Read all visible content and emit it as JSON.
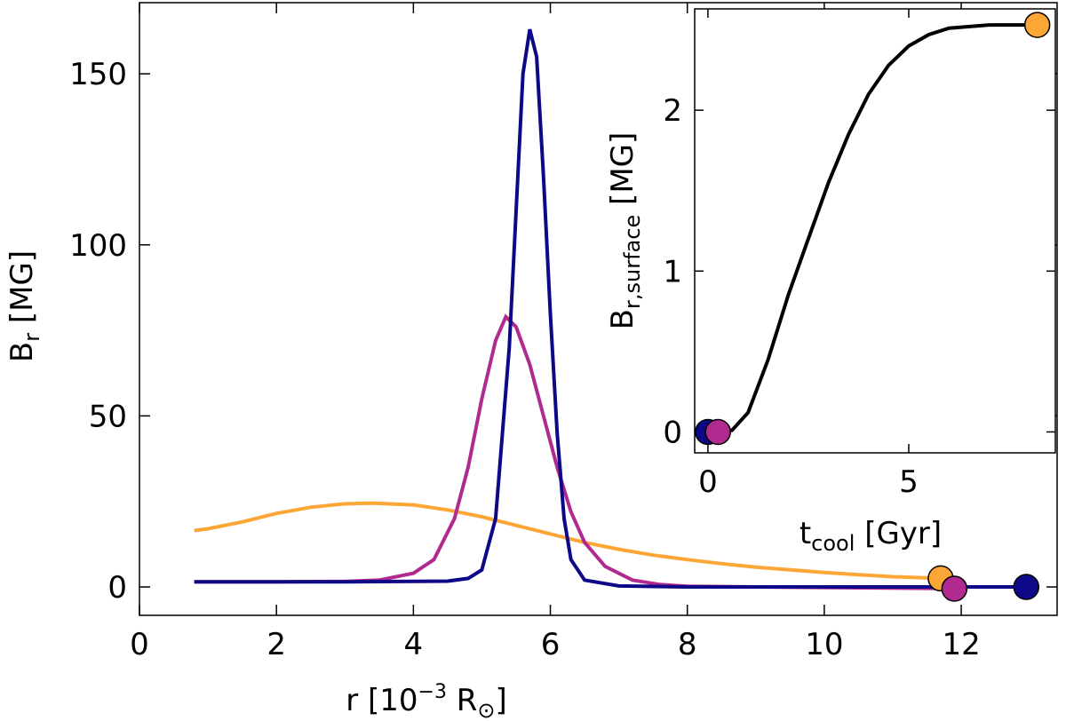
{
  "chart_data": [
    {
      "type": "line",
      "xlabel": [
        "r [10",
        "−3",
        " R",
        "⊙",
        "]"
      ],
      "ylabel": [
        "B",
        "r",
        " [MG]"
      ],
      "xlim": [
        0,
        13.4
      ],
      "ylim": [
        -8.3,
        170.8
      ],
      "xticks": [
        0,
        2,
        4,
        6,
        8,
        10,
        12
      ],
      "yticks": [
        0,
        50,
        100,
        150
      ],
      "end_markers": true,
      "series": [
        {
          "color": "#fca636",
          "x": [
            0.8,
            1,
            1.5,
            2,
            2.5,
            3,
            3.4,
            4,
            4.5,
            5,
            5.5,
            6,
            6.5,
            7,
            7.5,
            8,
            8.5,
            9,
            9.5,
            10,
            10.5,
            11,
            11.7
          ],
          "values": [
            16.5,
            17,
            19,
            21.5,
            23.3,
            24.3,
            24.5,
            24,
            22.5,
            20.5,
            18,
            15.5,
            13,
            11,
            9.3,
            8,
            6.8,
            5.8,
            5,
            4.2,
            3.6,
            3,
            2.5
          ]
        },
        {
          "color": "#b12a90",
          "x": [
            0.8,
            2,
            3,
            3.5,
            4,
            4.3,
            4.6,
            4.8,
            5,
            5.2,
            5.35,
            5.5,
            5.7,
            5.9,
            6.1,
            6.3,
            6.5,
            6.8,
            7.2,
            7.6,
            8,
            9,
            11.9
          ],
          "values": [
            1.5,
            1.5,
            1.6,
            2,
            4,
            8,
            20,
            35,
            55,
            72,
            79,
            76,
            65,
            50,
            35,
            22,
            13,
            6,
            2,
            0.7,
            0.2,
            0,
            -0.5
          ]
        },
        {
          "color": "#0d0887",
          "x": [
            0.8,
            3,
            4.5,
            4.8,
            5,
            5.2,
            5.4,
            5.5,
            5.6,
            5.7,
            5.8,
            5.9,
            6,
            6.1,
            6.2,
            6.3,
            6.5,
            7,
            8,
            12.95
          ],
          "values": [
            1.5,
            1.5,
            1.7,
            2.5,
            5,
            20,
            70,
            110,
            150,
            163,
            155,
            120,
            80,
            45,
            20,
            8,
            2,
            0.3,
            0,
            0
          ]
        }
      ]
    },
    {
      "type": "line",
      "xlabel": [
        "t",
        "cool",
        " [Gyr]"
      ],
      "ylabel": [
        "B",
        "r,surface",
        " [MG]"
      ],
      "xlim": [
        -0.33,
        8.65
      ],
      "ylim": [
        -0.13,
        2.63
      ],
      "xticks": [
        0,
        5
      ],
      "yticks": [
        0,
        1,
        2
      ],
      "series": [
        {
          "color": "#000000",
          "x": [
            0.3,
            0.6,
            1,
            1.5,
            2,
            2.5,
            3,
            3.5,
            4,
            4.5,
            5,
            5.5,
            6,
            7,
            8.2
          ],
          "values": [
            0,
            0.01,
            0.12,
            0.45,
            0.85,
            1.2,
            1.55,
            1.85,
            2.1,
            2.28,
            2.4,
            2.47,
            2.51,
            2.53,
            2.53
          ]
        }
      ],
      "points": {
        "x": [
          0,
          0.25,
          8.2
        ],
        "values": [
          0,
          0,
          2.53
        ],
        "colors": [
          "#0d0887",
          "#b12a90",
          "#fca636"
        ]
      }
    }
  ]
}
